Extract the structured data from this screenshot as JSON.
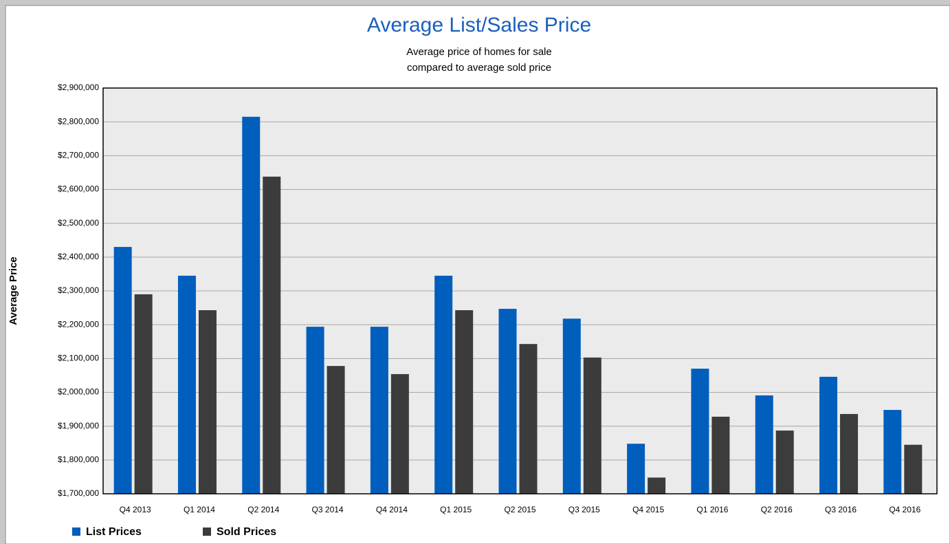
{
  "chart_data": {
    "type": "bar",
    "title": "Average List/Sales Price",
    "subtitle": [
      "Average price of homes for sale",
      "compared to average sold price"
    ],
    "y_label": "Average Price",
    "categories": [
      "Q4 2013",
      "Q1 2014",
      "Q2 2014",
      "Q3 2014",
      "Q4 2014",
      "Q1 2015",
      "Q2 2015",
      "Q3 2015",
      "Q4 2015",
      "Q1 2016",
      "Q2 2016",
      "Q3 2016",
      "Q4 2016"
    ],
    "series": [
      {
        "name": "List Prices",
        "color": "#005ebd",
        "values": [
          2430000,
          2345000,
          2815000,
          2194000,
          2194000,
          2345000,
          2247000,
          2218000,
          1848000,
          2070000,
          1991000,
          2046000,
          1948000
        ]
      },
      {
        "name": "Sold Prices",
        "color": "#3c3c3c",
        "values": [
          2290000,
          2243000,
          2638000,
          2078000,
          2054000,
          2243000,
          2143000,
          2103000,
          1748000,
          1928000,
          1887000,
          1936000,
          1845000
        ]
      }
    ],
    "ylim": [
      1700000,
      2900000
    ],
    "yticks": [
      {
        "value": 1700000,
        "label": "$1,700,000"
      },
      {
        "value": 1800000,
        "label": "$1,800,000"
      },
      {
        "value": 1900000,
        "label": "$1,900,000"
      },
      {
        "value": 2000000,
        "label": "$2,000,000"
      },
      {
        "value": 2100000,
        "label": "$2,100,000"
      },
      {
        "value": 2200000,
        "label": "$2,200,000"
      },
      {
        "value": 2300000,
        "label": "$2,300,000"
      },
      {
        "value": 2400000,
        "label": "$2,400,000"
      },
      {
        "value": 2500000,
        "label": "$2,500,000"
      },
      {
        "value": 2600000,
        "label": "$2,600,000"
      },
      {
        "value": 2700000,
        "label": "$2,700,000"
      },
      {
        "value": 2800000,
        "label": "$2,800,000"
      },
      {
        "value": 2900000,
        "label": "$2,900,000"
      }
    ],
    "grid": true,
    "legend": "bottom-left"
  }
}
